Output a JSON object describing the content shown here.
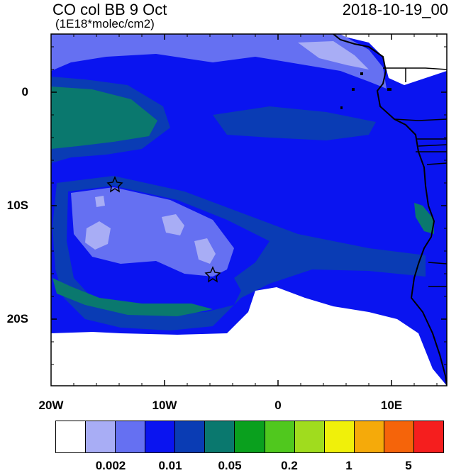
{
  "header": {
    "title": "CO col BB 9 Oct",
    "units": "(1E18*molec/cm2)",
    "date": "2018-10-19_00"
  },
  "axes": {
    "x_labels": [
      "20W",
      "10W",
      "0",
      "10E"
    ],
    "y_labels": [
      "0",
      "10S",
      "20S"
    ]
  },
  "colorbar": {
    "colors": [
      "#ffffff",
      "#a8adf5",
      "#6570f2",
      "#0a14f0",
      "#0a3cb4",
      "#0a786e",
      "#0aa01e",
      "#50c81e",
      "#a0dc1e",
      "#f0f00a",
      "#f5aa0a",
      "#f5640a",
      "#f51e1e"
    ],
    "labels": [
      "0.002",
      "0.01",
      "0.05",
      "0.2",
      "1",
      "5"
    ]
  },
  "map": {
    "region": "South Atlantic / West Africa",
    "markers": [
      "star",
      "star"
    ]
  }
}
